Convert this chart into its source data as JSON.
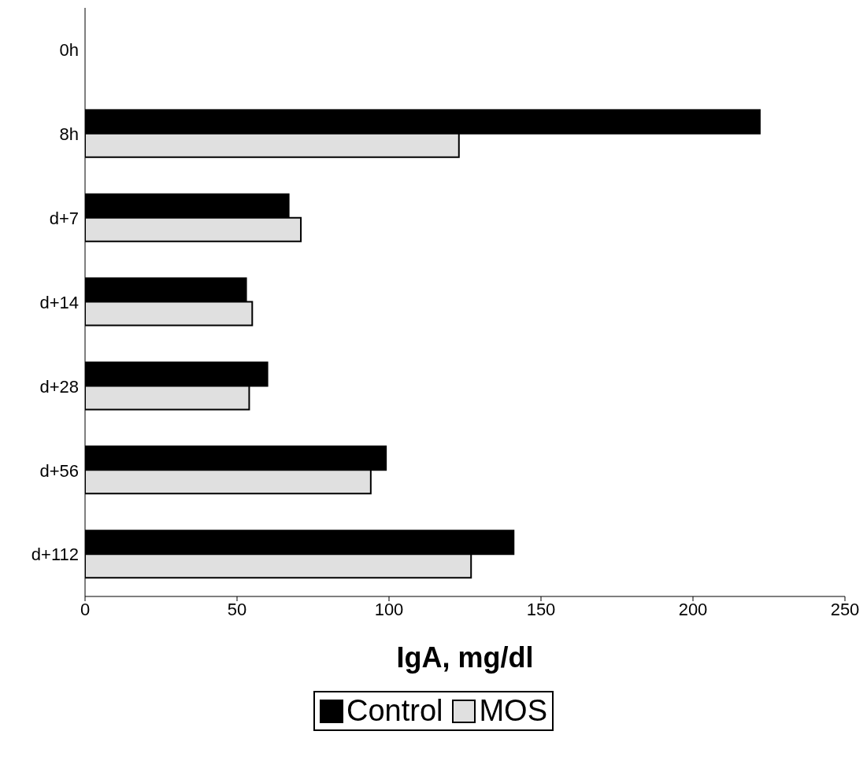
{
  "chart_data": {
    "type": "bar",
    "orientation": "horizontal",
    "xlabel": "IgA, mg/dl",
    "categories": [
      "0h",
      "8h",
      "d+7",
      "d+14",
      "d+28",
      "d+56",
      "d+112"
    ],
    "series": [
      {
        "name": "Control",
        "color": "#000000",
        "values": [
          null,
          222,
          67,
          53,
          60,
          99,
          141
        ]
      },
      {
        "name": "MOS",
        "color": "#e0e0e0",
        "values": [
          null,
          123,
          71,
          55,
          54,
          94,
          127
        ]
      }
    ],
    "xlim": [
      0,
      250
    ],
    "xticks": [
      0,
      50,
      100,
      150,
      200,
      250
    ],
    "grid": false,
    "legend": "bottom"
  }
}
